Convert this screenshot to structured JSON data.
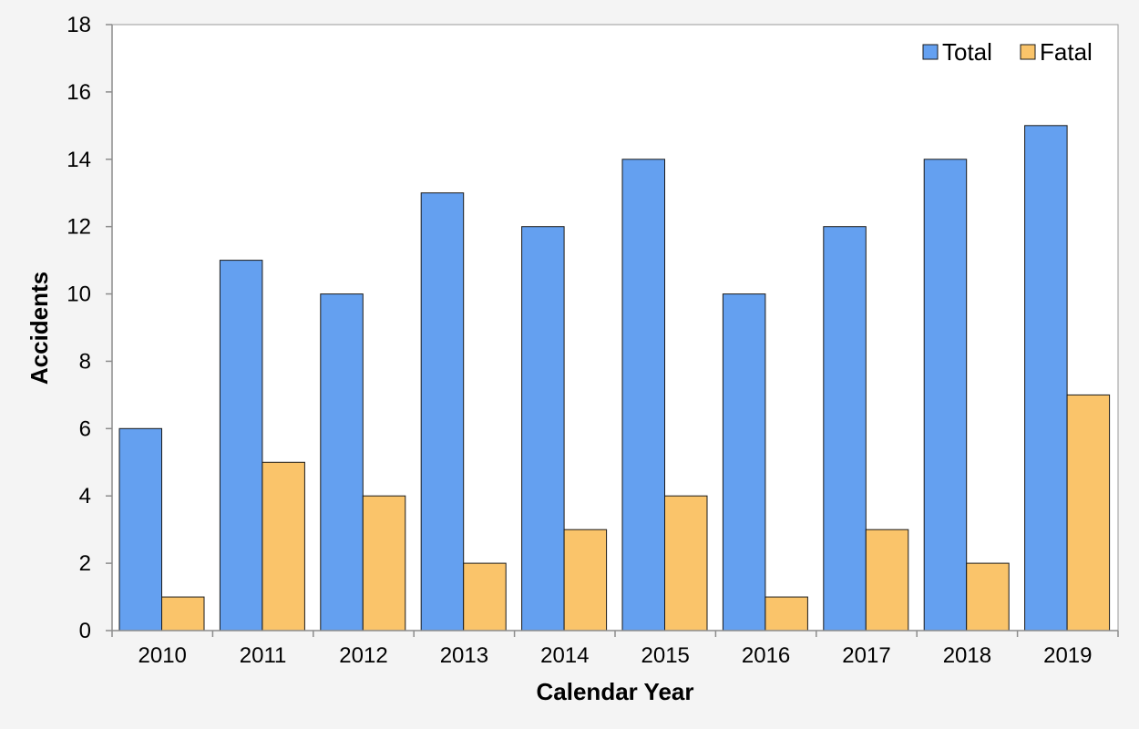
{
  "chart_data": {
    "type": "bar",
    "title": "",
    "xlabel": "Calendar Year",
    "ylabel": "Accidents",
    "categories": [
      "2010",
      "2011",
      "2012",
      "2013",
      "2014",
      "2015",
      "2016",
      "2017",
      "2018",
      "2019"
    ],
    "series": [
      {
        "name": "Total",
        "values": [
          6,
          11,
          10,
          13,
          12,
          14,
          10,
          12,
          14,
          15
        ],
        "color": "#64a0f0"
      },
      {
        "name": "Fatal",
        "values": [
          1,
          5,
          4,
          2,
          3,
          4,
          1,
          3,
          2,
          7
        ],
        "color": "#fac46a"
      }
    ],
    "ylim": [
      0,
      18
    ],
    "yticks": [
      "0",
      "2",
      "4",
      "6",
      "8",
      "10",
      "12",
      "14",
      "16",
      "18"
    ],
    "grid": false,
    "legend_position": "top-right"
  }
}
